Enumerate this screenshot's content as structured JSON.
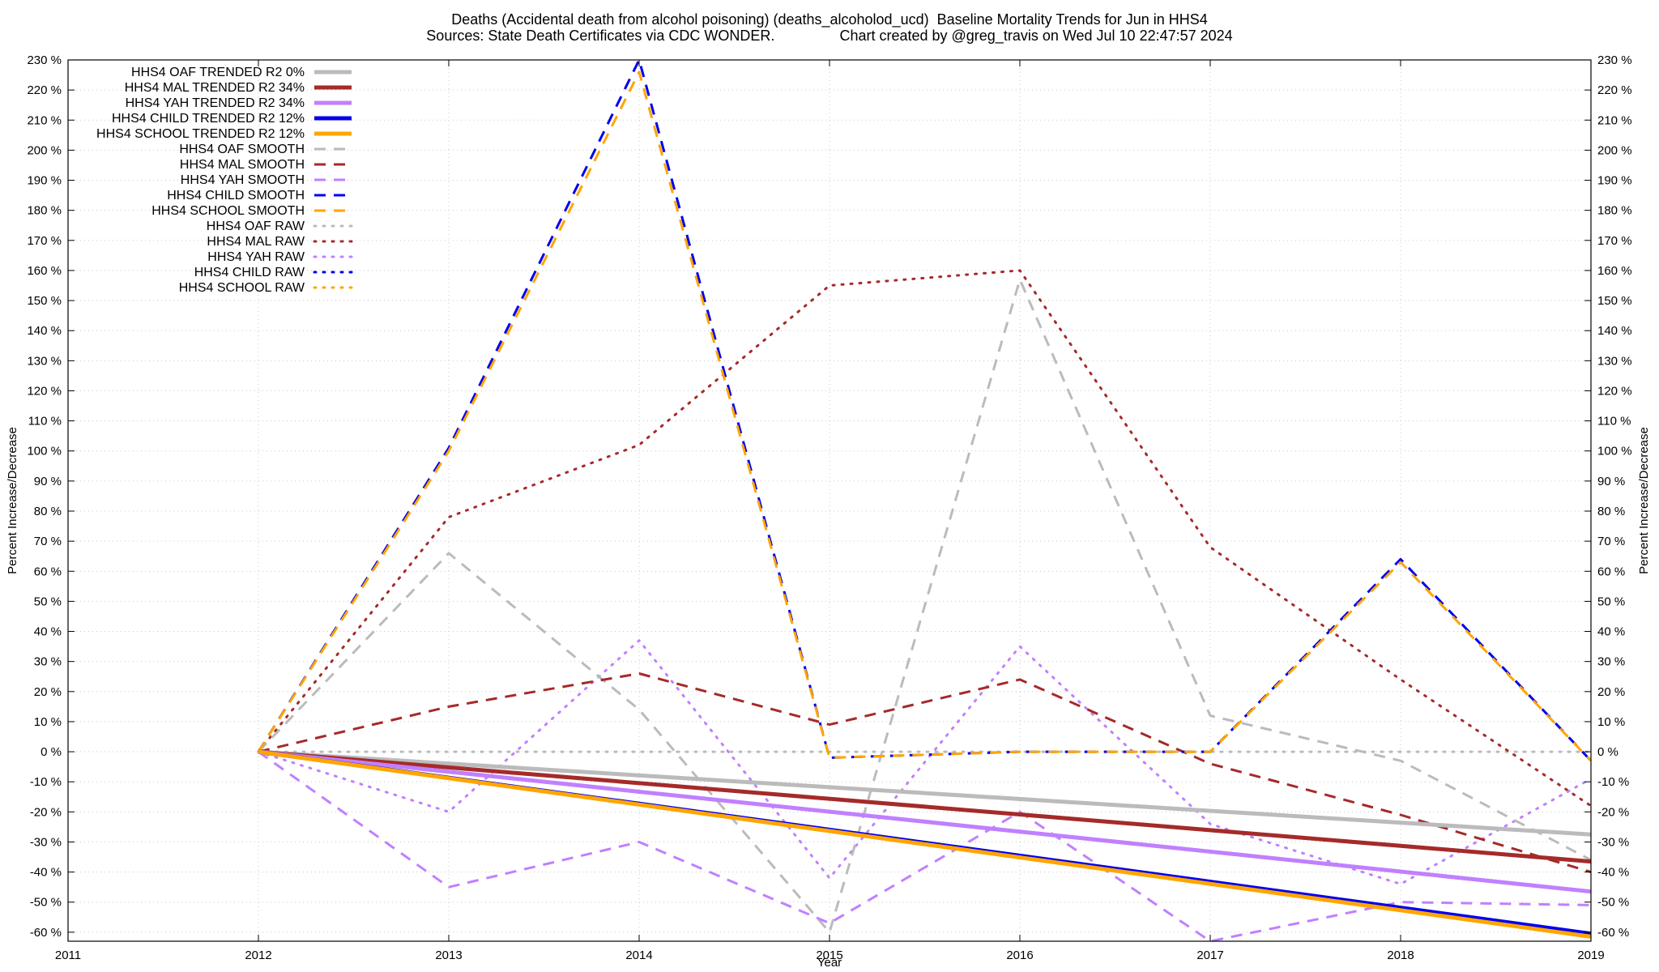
{
  "title_line1": "Deaths (Accidental death from alcohol poisoning) (deaths_alcoholod_ucd)  Baseline Mortality Trends for Jun in HHS4",
  "title_line2": "Sources: State Death Certificates via CDC WONDER.                Chart created by @greg_travis on Wed Jul 10 22:47:57 2024",
  "chart_data": {
    "type": "line",
    "xlabel": "Year",
    "ylabel": "Percent Increase/Decrease",
    "y2label": "Percent Increase/Decrease",
    "xlim": [
      2011,
      2019
    ],
    "ylim": [
      -63,
      230
    ],
    "x_ticks": [
      "2011",
      "2012",
      "2013",
      "2014",
      "2015",
      "2016",
      "2017",
      "2018",
      "2019"
    ],
    "y_ticks": [
      "230 %",
      "220 %",
      "210 %",
      "200 %",
      "190 %",
      "180 %",
      "170 %",
      "160 %",
      "150 %",
      "140 %",
      "130 %",
      "120 %",
      "110 %",
      "100 %",
      "90 %",
      "80 %",
      "70 %",
      "60 %",
      "50 %",
      "40 %",
      "30 %",
      "20 %",
      "10 %",
      "0 %",
      "-10 %",
      "-20 %",
      "-30 %",
      "-40 %",
      "-50 %",
      "-60 %"
    ],
    "grid": true,
    "legend_position": "top-left",
    "series": [
      {
        "name": "HHS4 OAF TRENDED R2  0%",
        "color": "#bbbbbb",
        "style": "solid",
        "width": 5,
        "x": [
          2012,
          2019
        ],
        "y": [
          0,
          -27.5
        ]
      },
      {
        "name": "HHS4 MAL TRENDED R2  34%",
        "color": "#a52a2a",
        "style": "solid",
        "width": 5,
        "x": [
          2012,
          2019
        ],
        "y": [
          0,
          -36.5
        ]
      },
      {
        "name": "HHS4 YAH TRENDED R2  34%",
        "color": "#c080ff",
        "style": "solid",
        "width": 5,
        "x": [
          2012,
          2019
        ],
        "y": [
          0,
          -46.5
        ]
      },
      {
        "name": "HHS4 CHILD TRENDED R2  12%",
        "color": "#0000ee",
        "style": "solid",
        "width": 5,
        "x": [
          2012,
          2019
        ],
        "y": [
          0,
          -60.5
        ]
      },
      {
        "name": "HHS4 SCHOOL TRENDED R2  12%",
        "color": "#ffa500",
        "style": "solid",
        "width": 5,
        "x": [
          2012,
          2019
        ],
        "y": [
          0,
          -61.5
        ]
      },
      {
        "name": "HHS4 OAF SMOOTH",
        "color": "#bbbbbb",
        "style": "dash",
        "width": 3,
        "x": [
          2012,
          2013,
          2014,
          2015,
          2016,
          2017,
          2018,
          2019
        ],
        "y": [
          0,
          66,
          14,
          -60,
          157,
          12,
          -3,
          -36
        ]
      },
      {
        "name": "HHS4 MAL SMOOTH",
        "color": "#a52a2a",
        "style": "dash",
        "width": 3,
        "x": [
          2012,
          2013,
          2014,
          2015,
          2016,
          2017,
          2018,
          2019
        ],
        "y": [
          0,
          15,
          26,
          9,
          24,
          -4,
          -21,
          -40
        ]
      },
      {
        "name": "HHS4 YAH SMOOTH",
        "color": "#c080ff",
        "style": "dash",
        "width": 3,
        "x": [
          2012,
          2013,
          2014,
          2015,
          2016,
          2017,
          2018,
          2019
        ],
        "y": [
          0,
          -45,
          -30,
          -57,
          -20,
          -63,
          -50,
          -51
        ]
      },
      {
        "name": "HHS4 CHILD SMOOTH",
        "color": "#0000ee",
        "style": "dash",
        "width": 3,
        "x": [
          2012,
          2013,
          2014,
          2015,
          2016,
          2017,
          2018,
          2019
        ],
        "y": [
          0,
          101,
          230,
          -2,
          0,
          0,
          64,
          -3
        ]
      },
      {
        "name": "HHS4 SCHOOL SMOOTH",
        "color": "#ffa500",
        "style": "dash",
        "width": 3,
        "x": [
          2012,
          2013,
          2014,
          2015,
          2016,
          2017,
          2018,
          2019
        ],
        "y": [
          0,
          100,
          226,
          -2,
          0,
          0,
          63,
          -3
        ]
      },
      {
        "name": "HHS4 OAF RAW",
        "color": "#bbbbbb",
        "style": "dot",
        "width": 3,
        "x": [
          2012,
          2013,
          2014,
          2015,
          2016,
          2017,
          2018,
          2019
        ],
        "y": [
          0,
          0,
          0,
          0,
          0,
          0,
          0,
          0
        ]
      },
      {
        "name": "HHS4 MAL RAW",
        "color": "#a52a2a",
        "style": "dot",
        "width": 3,
        "x": [
          2012,
          2013,
          2014,
          2015,
          2016,
          2017,
          2018,
          2019
        ],
        "y": [
          0,
          78,
          102,
          155,
          160,
          68,
          24,
          -18
        ]
      },
      {
        "name": "HHS4 YAH RAW",
        "color": "#c080ff",
        "style": "dot",
        "width": 3,
        "x": [
          2012,
          2013,
          2014,
          2015,
          2016,
          2017,
          2018,
          2019
        ],
        "y": [
          0,
          -20,
          37,
          -42,
          35,
          -24,
          -44,
          -9
        ]
      },
      {
        "name": "HHS4 CHILD RAW",
        "color": "#0000ee",
        "style": "dot",
        "width": 3,
        "x": [],
        "y": []
      },
      {
        "name": "HHS4 SCHOOL RAW",
        "color": "#ffa500",
        "style": "dot",
        "width": 3,
        "x": [],
        "y": []
      }
    ]
  }
}
